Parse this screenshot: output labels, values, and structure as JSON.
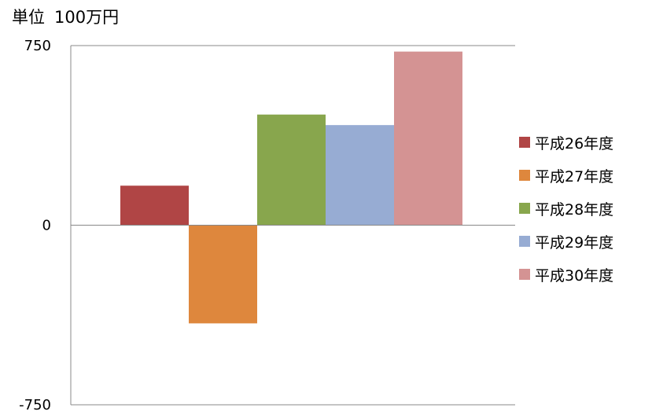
{
  "unit": {
    "prefix": "単位",
    "value": "100万円"
  },
  "chart_data": {
    "type": "bar",
    "title": "",
    "xlabel": "",
    "ylabel": "",
    "ylim": [
      -750,
      750
    ],
    "yticks": [
      "750",
      "0",
      "-750"
    ],
    "ytick_values": [
      750,
      0,
      -750
    ],
    "grid": false,
    "legend_position": "right",
    "series": [
      {
        "name": "平成26年度",
        "value": 165,
        "color": "#B04545"
      },
      {
        "name": "平成27年度",
        "value": -410,
        "color": "#DE873D"
      },
      {
        "name": "平成28年度",
        "value": 462,
        "color": "#88A64D"
      },
      {
        "name": "平成29年度",
        "value": 418,
        "color": "#97ACD3"
      },
      {
        "name": "平成30年度",
        "value": 725,
        "color": "#D49393"
      }
    ]
  }
}
